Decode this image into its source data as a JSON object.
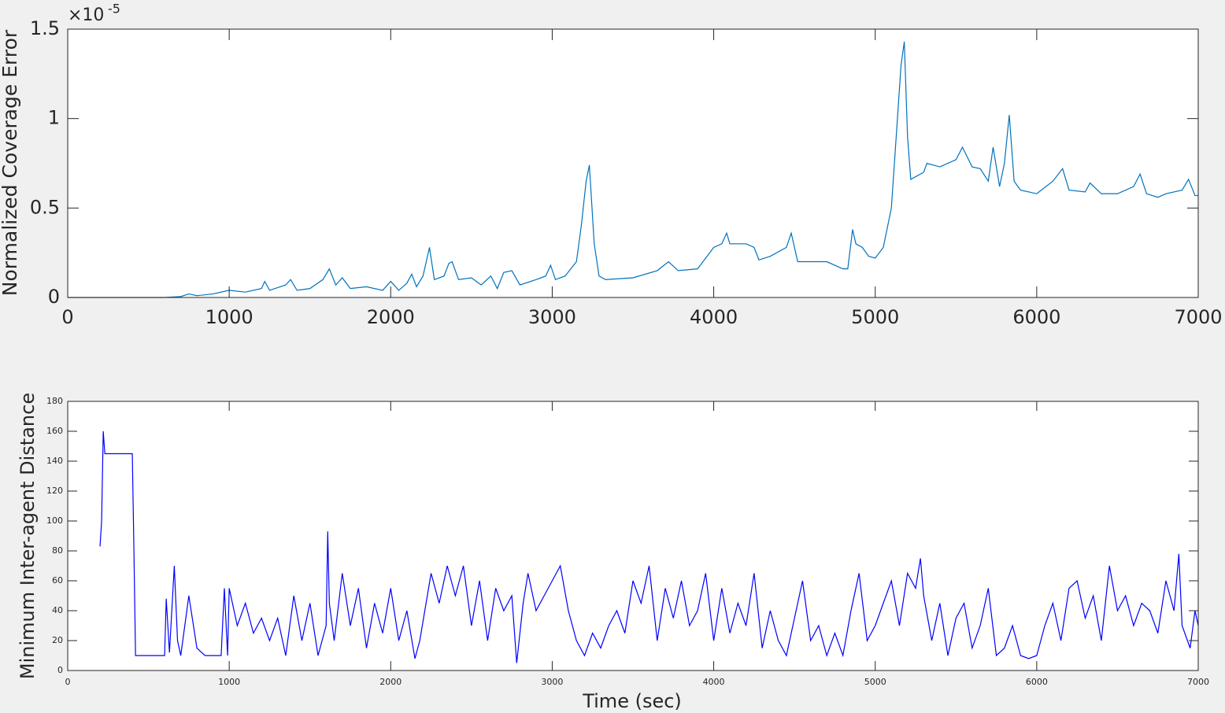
{
  "chart_data": [
    {
      "type": "line",
      "y_label": "Normalized Coverage Error",
      "y_multiplier": {
        "base": "×10",
        "exponent": "-5"
      },
      "color": "#0072bd",
      "xlim": [
        0,
        7000
      ],
      "xticks": [
        0,
        1000,
        2000,
        3000,
        4000,
        5000,
        6000,
        7000
      ],
      "ylim": [
        0,
        1.5
      ],
      "yticks": [
        0,
        0.5,
        1,
        1.5
      ],
      "x": [
        0,
        600,
        700,
        750,
        800,
        900,
        1000,
        1100,
        1200,
        1220,
        1250,
        1350,
        1380,
        1420,
        1500,
        1580,
        1620,
        1660,
        1700,
        1750,
        1850,
        1950,
        2000,
        2050,
        2100,
        2130,
        2160,
        2200,
        2240,
        2270,
        2330,
        2360,
        2380,
        2420,
        2500,
        2560,
        2620,
        2660,
        2700,
        2750,
        2800,
        2900,
        2960,
        2990,
        3020,
        3080,
        3150,
        3180,
        3210,
        3230,
        3260,
        3290,
        3330,
        3500,
        3650,
        3720,
        3780,
        3900,
        4000,
        4050,
        4080,
        4100,
        4200,
        4250,
        4280,
        4350,
        4450,
        4480,
        4520,
        4700,
        4800,
        4830,
        4860,
        4880,
        4920,
        4960,
        5000,
        5050,
        5100,
        5130,
        5160,
        5180,
        5200,
        5220,
        5300,
        5320,
        5400,
        5500,
        5540,
        5600,
        5650,
        5700,
        5730,
        5770,
        5800,
        5830,
        5860,
        5900,
        6000,
        6100,
        6160,
        6200,
        6300,
        6330,
        6400,
        6500,
        6600,
        6640,
        6680,
        6750,
        6800,
        6900,
        6940,
        6980,
        7000
      ],
      "values": [
        0,
        0,
        0.005,
        0.02,
        0.01,
        0.02,
        0.04,
        0.03,
        0.05,
        0.09,
        0.04,
        0.07,
        0.1,
        0.04,
        0.05,
        0.1,
        0.16,
        0.07,
        0.11,
        0.05,
        0.06,
        0.04,
        0.09,
        0.04,
        0.08,
        0.13,
        0.06,
        0.12,
        0.28,
        0.1,
        0.12,
        0.19,
        0.2,
        0.1,
        0.11,
        0.07,
        0.12,
        0.05,
        0.14,
        0.15,
        0.07,
        0.1,
        0.12,
        0.18,
        0.1,
        0.12,
        0.2,
        0.4,
        0.65,
        0.74,
        0.3,
        0.12,
        0.1,
        0.11,
        0.15,
        0.2,
        0.15,
        0.16,
        0.28,
        0.3,
        0.36,
        0.3,
        0.3,
        0.28,
        0.21,
        0.23,
        0.28,
        0.36,
        0.2,
        0.2,
        0.16,
        0.16,
        0.38,
        0.3,
        0.28,
        0.23,
        0.22,
        0.28,
        0.5,
        0.9,
        1.3,
        1.43,
        0.9,
        0.66,
        0.7,
        0.75,
        0.73,
        0.77,
        0.84,
        0.73,
        0.72,
        0.65,
        0.84,
        0.62,
        0.75,
        1.02,
        0.65,
        0.6,
        0.58,
        0.65,
        0.72,
        0.6,
        0.59,
        0.64,
        0.58,
        0.58,
        0.62,
        0.69,
        0.58,
        0.56,
        0.58,
        0.6,
        0.66,
        0.57,
        0.57
      ]
    },
    {
      "type": "line",
      "y_label": "Minimum Inter-agent Distance",
      "x_label": "Time (sec)",
      "color": "#0000ff",
      "xlim": [
        0,
        7000
      ],
      "xticks": [
        0,
        1000,
        2000,
        3000,
        4000,
        5000,
        6000,
        7000
      ],
      "ylim": [
        0,
        180
      ],
      "yticks": [
        0,
        20,
        40,
        60,
        80,
        100,
        120,
        140,
        160,
        180
      ],
      "x": [
        200,
        210,
        220,
        230,
        400,
        410,
        420,
        600,
        610,
        630,
        660,
        680,
        700,
        750,
        800,
        850,
        950,
        970,
        990,
        1000,
        1050,
        1100,
        1150,
        1200,
        1250,
        1300,
        1350,
        1400,
        1450,
        1500,
        1550,
        1600,
        1610,
        1620,
        1650,
        1700,
        1750,
        1800,
        1850,
        1900,
        1950,
        2000,
        2050,
        2100,
        2150,
        2180,
        2250,
        2300,
        2350,
        2400,
        2450,
        2500,
        2550,
        2600,
        2650,
        2700,
        2750,
        2780,
        2820,
        2850,
        2900,
        2950,
        3000,
        3050,
        3100,
        3150,
        3200,
        3250,
        3300,
        3350,
        3400,
        3450,
        3500,
        3550,
        3600,
        3650,
        3700,
        3750,
        3800,
        3850,
        3900,
        3950,
        4000,
        4050,
        4100,
        4150,
        4200,
        4250,
        4300,
        4350,
        4400,
        4450,
        4500,
        4550,
        4600,
        4650,
        4700,
        4750,
        4800,
        4850,
        4900,
        4950,
        5000,
        5050,
        5100,
        5150,
        5200,
        5250,
        5280,
        5300,
        5350,
        5400,
        5450,
        5500,
        5550,
        5600,
        5650,
        5700,
        5750,
        5800,
        5850,
        5900,
        5950,
        6000,
        6050,
        6100,
        6150,
        6200,
        6250,
        6300,
        6350,
        6400,
        6450,
        6500,
        6550,
        6600,
        6650,
        6700,
        6750,
        6800,
        6850,
        6880,
        6900,
        6950,
        6980,
        7000
      ],
      "values": [
        83,
        100,
        160,
        145,
        145,
        80,
        10,
        10,
        48,
        12,
        70,
        20,
        10,
        50,
        15,
        10,
        10,
        55,
        10,
        55,
        30,
        45,
        25,
        35,
        20,
        35,
        10,
        50,
        20,
        45,
        10,
        30,
        93,
        45,
        20,
        65,
        30,
        55,
        15,
        45,
        25,
        55,
        20,
        40,
        8,
        20,
        65,
        45,
        70,
        50,
        70,
        30,
        60,
        20,
        55,
        40,
        50,
        5,
        45,
        65,
        40,
        50,
        60,
        70,
        40,
        20,
        10,
        25,
        15,
        30,
        40,
        25,
        60,
        45,
        70,
        20,
        55,
        35,
        60,
        30,
        40,
        65,
        20,
        55,
        25,
        45,
        30,
        65,
        15,
        40,
        20,
        10,
        35,
        60,
        20,
        30,
        10,
        25,
        10,
        40,
        65,
        20,
        30,
        45,
        60,
        30,
        65,
        55,
        75,
        50,
        20,
        45,
        10,
        35,
        45,
        15,
        30,
        55,
        10,
        15,
        30,
        10,
        8,
        10,
        30,
        45,
        20,
        55,
        60,
        35,
        50,
        20,
        70,
        40,
        50,
        30,
        45,
        40,
        25,
        60,
        40,
        78,
        30,
        15,
        40,
        30
      ]
    }
  ]
}
